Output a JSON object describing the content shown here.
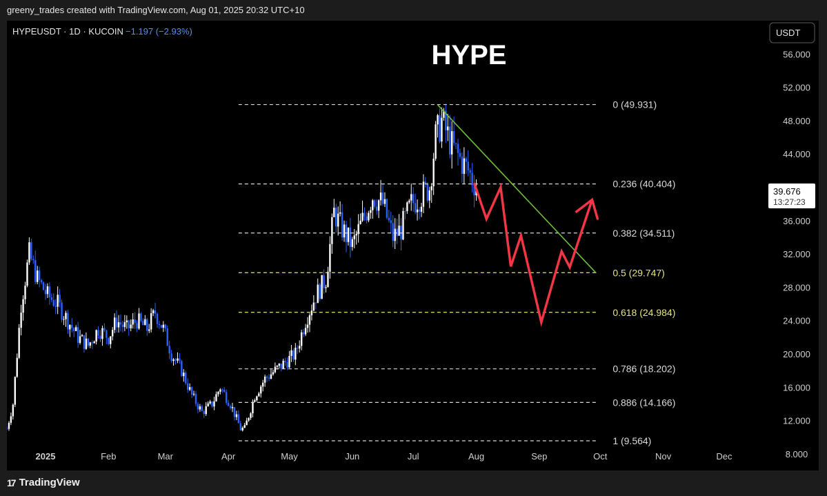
{
  "credit": "greeny_trades created with TradingView.com, Aug 01, 2025 20:32 UTC+10",
  "footer": {
    "logo_mark": "17",
    "logo_text": "TradingView"
  },
  "colors": {
    "up": "#ffffff",
    "down": "#2962ff",
    "neutral_fib": "#d9d9d9",
    "golden_fib": "#e6e67a",
    "trendline": "#6fbf3a",
    "projection": "#f23645",
    "pct_text": "#5b8def"
  },
  "chart_data": {
    "type": "candlestick",
    "title": "HYPE",
    "symbol": "HYPEUSDT · 1D · KUCOIN",
    "change": "−1.197 (−2.93%)",
    "currency": "USDT",
    "ylim": [
      6,
      60
    ],
    "y_ticks": [
      "8.000",
      "12.000",
      "16.000",
      "20.000",
      "24.000",
      "28.000",
      "32.000",
      "36.000",
      "40.000",
      "44.000",
      "48.000",
      "52.000",
      "56.000"
    ],
    "x_ticks": [
      {
        "label": "2025",
        "date": "2025-01-01",
        "bold": true
      },
      {
        "label": "Feb",
        "date": "2025-02-01"
      },
      {
        "label": "Mar",
        "date": "2025-03-01"
      },
      {
        "label": "Apr",
        "date": "2025-04-01"
      },
      {
        "label": "May",
        "date": "2025-05-01"
      },
      {
        "label": "Jun",
        "date": "2025-06-01"
      },
      {
        "label": "Jul",
        "date": "2025-07-01"
      },
      {
        "label": "Aug",
        "date": "2025-08-01"
      },
      {
        "label": "Sep",
        "date": "2025-09-01"
      },
      {
        "label": "Oct",
        "date": "2025-10-01"
      },
      {
        "label": "Nov",
        "date": "2025-11-01"
      },
      {
        "label": "Dec",
        "date": "2025-12-01"
      }
    ],
    "x_range": [
      "2024-12-13",
      "2025-12-18"
    ],
    "price_path": [
      [
        "2024-12-13",
        11
      ],
      [
        "2024-12-16",
        14
      ],
      [
        "2024-12-20",
        26
      ],
      [
        "2024-12-24",
        32
      ],
      [
        "2024-12-28",
        29
      ],
      [
        "2025-01-02",
        27
      ],
      [
        "2025-01-07",
        26
      ],
      [
        "2025-01-12",
        24
      ],
      [
        "2025-01-17",
        22
      ],
      [
        "2025-01-22",
        21
      ],
      [
        "2025-01-27",
        23
      ],
      [
        "2025-02-01",
        22
      ],
      [
        "2025-02-05",
        24
      ],
      [
        "2025-02-10",
        23
      ],
      [
        "2025-02-15",
        24
      ],
      [
        "2025-02-20",
        23
      ],
      [
        "2025-02-24",
        25
      ],
      [
        "2025-02-28",
        23
      ],
      [
        "2025-03-04",
        20
      ],
      [
        "2025-03-09",
        18
      ],
      [
        "2025-03-14",
        15
      ],
      [
        "2025-03-19",
        13
      ],
      [
        "2025-03-24",
        14
      ],
      [
        "2025-03-28",
        16
      ],
      [
        "2025-04-02",
        14
      ],
      [
        "2025-04-07",
        11
      ],
      [
        "2025-04-09",
        11
      ],
      [
        "2025-04-14",
        15
      ],
      [
        "2025-04-19",
        17
      ],
      [
        "2025-04-24",
        18
      ],
      [
        "2025-04-29",
        19
      ],
      [
        "2025-05-04",
        20
      ],
      [
        "2025-05-09",
        24
      ],
      [
        "2025-05-14",
        27
      ],
      [
        "2025-05-19",
        29
      ],
      [
        "2025-05-23",
        37
      ],
      [
        "2025-05-27",
        35
      ],
      [
        "2025-06-01",
        33
      ],
      [
        "2025-06-06",
        36
      ],
      [
        "2025-06-11",
        39
      ],
      [
        "2025-06-16",
        38
      ],
      [
        "2025-06-21",
        34
      ],
      [
        "2025-06-25",
        35
      ],
      [
        "2025-06-30",
        38
      ],
      [
        "2025-07-05",
        39
      ],
      [
        "2025-07-09",
        40
      ],
      [
        "2025-07-12",
        46
      ],
      [
        "2025-07-15",
        48
      ],
      [
        "2025-07-20",
        45
      ],
      [
        "2025-07-25",
        43
      ],
      [
        "2025-07-28",
        42
      ],
      [
        "2025-08-01",
        40
      ]
    ],
    "candle_days": 1,
    "last_price": "39.676",
    "countdown": "13:27:23",
    "fib_levels": [
      {
        "label": "0 (49.931)",
        "value": 49.931,
        "golden": false
      },
      {
        "label": "0.236 (40.404)",
        "value": 40.404,
        "golden": false
      },
      {
        "label": "0.382 (34.511)",
        "value": 34.511,
        "golden": false
      },
      {
        "label": "0.5 (29.747)",
        "value": 29.747,
        "golden": true
      },
      {
        "label": "0.618 (24.984)",
        "value": 24.984,
        "golden": true
      },
      {
        "label": "0.786 (18.202)",
        "value": 18.202,
        "golden": false
      },
      {
        "label": "0.886 (14.166)",
        "value": 14.166,
        "golden": false
      },
      {
        "label": "1 (9.564)",
        "value": 9.564,
        "golden": false
      }
    ],
    "fib_range": [
      "2025-04-06",
      "2025-09-29"
    ],
    "trendline": [
      [
        "2025-07-13",
        49.9
      ],
      [
        "2025-09-29",
        29.7
      ]
    ],
    "projection": [
      [
        "2025-07-31",
        40.5
      ],
      [
        "2025-08-06",
        36.2
      ],
      [
        "2025-08-13",
        40.0
      ],
      [
        "2025-08-18",
        30.5
      ],
      [
        "2025-08-23",
        34.2
      ],
      [
        "2025-09-02",
        23.8
      ],
      [
        "2025-09-12",
        32.3
      ],
      [
        "2025-09-16",
        30.4
      ],
      [
        "2025-09-27",
        38.5
      ]
    ]
  }
}
